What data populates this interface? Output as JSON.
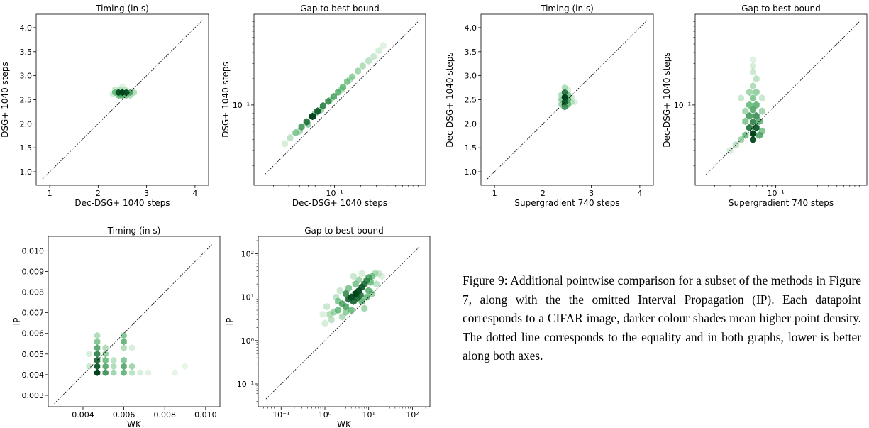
{
  "caption": "Figure 9:   Additional pointwise comparison for a subset of the methods in Figure 7, along with the the omitted Interval Propagation (IP). Each datapoint corresponds to a CIFAR image, darker colour shades mean higher point density.  The dotted line corresponds to the equality and in both graphs, lower is better along both axes.",
  "colors": {
    "hex_light": "#e5f5e0",
    "hex_mid": "#41ab5d",
    "hex_dark": "#00441b",
    "axis": "#000000",
    "diagonal": "#000000"
  },
  "chart_data": [
    {
      "type": "scatter",
      "style": "hexbin-density",
      "title": "Timing (in s)",
      "xlabel": "Dec-DSG+ 1040 steps",
      "ylabel": "DSG+ 1040 steps",
      "xscale": "linear",
      "yscale": "linear",
      "xlim": [
        0.72,
        4.28
      ],
      "ylim": [
        0.72,
        4.28
      ],
      "xticks": [
        1,
        2,
        3,
        4
      ],
      "xticklabels": [
        "1",
        "2",
        "3",
        "4"
      ],
      "yticks": [
        1.0,
        1.5,
        2.0,
        2.5,
        3.0,
        3.5,
        4.0
      ],
      "yticklabels": [
        "1.0",
        "1.5",
        "2.0",
        "2.5",
        "3.0",
        "3.5",
        "4.0"
      ],
      "diagonal": [
        0.85,
        4.15
      ],
      "grid": false,
      "points": [
        [
          2.35,
          2.65,
          0.5
        ],
        [
          2.42,
          2.65,
          0.95
        ],
        [
          2.5,
          2.65,
          1.0
        ],
        [
          2.58,
          2.65,
          0.95
        ],
        [
          2.66,
          2.65,
          0.6
        ],
        [
          2.74,
          2.65,
          0.3
        ],
        [
          2.42,
          2.59,
          0.45
        ],
        [
          2.5,
          2.59,
          0.55
        ],
        [
          2.58,
          2.59,
          0.45
        ],
        [
          2.66,
          2.59,
          0.3
        ],
        [
          2.35,
          2.71,
          0.2
        ],
        [
          2.45,
          2.71,
          0.25
        ],
        [
          2.55,
          2.71,
          0.2
        ],
        [
          2.5,
          2.77,
          0.1
        ],
        [
          2.45,
          2.59,
          0.35
        ],
        [
          2.3,
          2.62,
          0.15
        ]
      ]
    },
    {
      "type": "scatter",
      "style": "hexbin-density",
      "title": "Gap to best bound",
      "xlabel": "Dec-DSG+ 1040 steps",
      "ylabel": "DSG+ 1040 steps",
      "xscale": "log",
      "yscale": "log",
      "xlim": [
        0.012,
        1.1
      ],
      "ylim": [
        0.012,
        1.1
      ],
      "xticks": [
        0.1
      ],
      "xticklabels": [
        "10⁻¹"
      ],
      "yticks": [
        0.1
      ],
      "yticklabels": [
        "10⁻¹"
      ],
      "diagonal": [
        0.016,
        0.9
      ],
      "grid": false,
      "points": [
        [
          0.027,
          0.036,
          0.15
        ],
        [
          0.031,
          0.042,
          0.25
        ],
        [
          0.036,
          0.048,
          0.45
        ],
        [
          0.042,
          0.056,
          0.65
        ],
        [
          0.048,
          0.064,
          0.8
        ],
        [
          0.056,
          0.074,
          1.0
        ],
        [
          0.064,
          0.085,
          0.9
        ],
        [
          0.074,
          0.098,
          0.75
        ],
        [
          0.085,
          0.11,
          0.7
        ],
        [
          0.098,
          0.125,
          0.6
        ],
        [
          0.11,
          0.14,
          0.55
        ],
        [
          0.125,
          0.16,
          0.5
        ],
        [
          0.14,
          0.185,
          0.45
        ],
        [
          0.16,
          0.21,
          0.4
        ],
        [
          0.185,
          0.245,
          0.35
        ],
        [
          0.21,
          0.28,
          0.3
        ],
        [
          0.245,
          0.32,
          0.25
        ],
        [
          0.28,
          0.36,
          0.2
        ],
        [
          0.32,
          0.42,
          0.15
        ],
        [
          0.36,
          0.48,
          0.1
        ],
        [
          0.04,
          0.05,
          0.3
        ],
        [
          0.05,
          0.06,
          0.4
        ],
        [
          0.06,
          0.08,
          0.35
        ],
        [
          0.07,
          0.088,
          0.4
        ],
        [
          0.09,
          0.115,
          0.35
        ],
        [
          0.12,
          0.15,
          0.3
        ],
        [
          0.15,
          0.195,
          0.25
        ]
      ]
    },
    {
      "type": "scatter",
      "style": "hexbin-density",
      "title": "Timing (in s)",
      "xlabel": "Supergradient 740 steps",
      "ylabel": "Dec-DSG+ 1040 steps",
      "xscale": "linear",
      "yscale": "linear",
      "xlim": [
        0.72,
        4.28
      ],
      "ylim": [
        0.72,
        4.28
      ],
      "xticks": [
        1,
        2,
        3,
        4
      ],
      "xticklabels": [
        "1",
        "2",
        "3",
        "4"
      ],
      "yticks": [
        1.0,
        1.5,
        2.0,
        2.5,
        3.0,
        3.5,
        4.0
      ],
      "yticklabels": [
        "1.0",
        "1.5",
        "2.0",
        "2.5",
        "3.0",
        "3.5",
        "4.0"
      ],
      "diagonal": [
        0.85,
        4.15
      ],
      "grid": false,
      "points": [
        [
          2.45,
          2.35,
          0.7
        ],
        [
          2.45,
          2.45,
          0.9
        ],
        [
          2.45,
          2.55,
          1.0
        ],
        [
          2.45,
          2.65,
          0.8
        ],
        [
          2.52,
          2.4,
          0.5
        ],
        [
          2.52,
          2.5,
          0.55
        ],
        [
          2.52,
          2.6,
          0.45
        ],
        [
          2.38,
          2.4,
          0.35
        ],
        [
          2.38,
          2.5,
          0.4
        ],
        [
          2.38,
          2.6,
          0.3
        ],
        [
          2.59,
          2.45,
          0.25
        ],
        [
          2.59,
          2.55,
          0.2
        ],
        [
          2.45,
          2.75,
          0.3
        ],
        [
          2.52,
          2.7,
          0.15
        ],
        [
          2.66,
          2.45,
          0.12
        ]
      ]
    },
    {
      "type": "scatter",
      "style": "hexbin-density",
      "title": "Gap to best bound",
      "xlabel": "Supergradient 740 steps",
      "ylabel": "Dec-DSG+ 1040 steps",
      "xscale": "log",
      "yscale": "log",
      "xlim": [
        0.012,
        1.1
      ],
      "ylim": [
        0.012,
        1.1
      ],
      "xticks": [
        0.1
      ],
      "xticklabels": [
        "10⁻¹"
      ],
      "yticks": [
        0.1
      ],
      "yticklabels": [
        "10⁻¹"
      ],
      "diagonal": [
        0.016,
        0.9
      ],
      "grid": false,
      "points": [
        [
          0.055,
          0.04,
          0.95
        ],
        [
          0.055,
          0.047,
          1.0
        ],
        [
          0.06,
          0.055,
          0.9
        ],
        [
          0.05,
          0.055,
          0.8
        ],
        [
          0.055,
          0.064,
          0.75
        ],
        [
          0.06,
          0.075,
          0.7
        ],
        [
          0.05,
          0.075,
          0.65
        ],
        [
          0.055,
          0.088,
          0.6
        ],
        [
          0.06,
          0.1,
          0.55
        ],
        [
          0.05,
          0.1,
          0.5
        ],
        [
          0.055,
          0.12,
          0.45
        ],
        [
          0.06,
          0.14,
          0.4
        ],
        [
          0.05,
          0.14,
          0.35
        ],
        [
          0.055,
          0.165,
          0.3
        ],
        [
          0.06,
          0.2,
          0.25
        ],
        [
          0.055,
          0.24,
          0.2
        ],
        [
          0.055,
          0.28,
          0.15
        ],
        [
          0.055,
          0.33,
          0.1
        ],
        [
          0.045,
          0.045,
          0.5
        ],
        [
          0.04,
          0.04,
          0.35
        ],
        [
          0.035,
          0.035,
          0.25
        ],
        [
          0.03,
          0.03,
          0.15
        ],
        [
          0.065,
          0.045,
          0.6
        ],
        [
          0.07,
          0.05,
          0.45
        ],
        [
          0.045,
          0.065,
          0.45
        ],
        [
          0.065,
          0.065,
          0.55
        ],
        [
          0.07,
          0.085,
          0.35
        ],
        [
          0.045,
          0.085,
          0.35
        ],
        [
          0.04,
          0.12,
          0.2
        ],
        [
          0.07,
          0.12,
          0.2
        ]
      ]
    },
    {
      "type": "scatter",
      "style": "hexbin-density",
      "title": "Timing (in s)",
      "xlabel": "WK",
      "ylabel": "IP",
      "xscale": "linear",
      "yscale": "linear",
      "xlim": [
        0.0023,
        0.0107
      ],
      "ylim": [
        0.00245,
        0.0107
      ],
      "xticks": [
        0.004,
        0.006,
        0.008,
        0.01
      ],
      "xticklabels": [
        "0.004",
        "0.006",
        "0.008",
        "0.010"
      ],
      "yticks": [
        0.003,
        0.004,
        0.005,
        0.006,
        0.007,
        0.008,
        0.009,
        0.01
      ],
      "yticklabels": [
        "0.003",
        "0.004",
        "0.005",
        "0.006",
        "0.007",
        "0.008",
        "0.009",
        "0.010"
      ],
      "diagonal": [
        0.0026,
        0.0103
      ],
      "grid": false,
      "points": [
        [
          0.0047,
          0.0041,
          1.0
        ],
        [
          0.0047,
          0.0044,
          0.9
        ],
        [
          0.0047,
          0.0047,
          0.85
        ],
        [
          0.0047,
          0.005,
          0.75
        ],
        [
          0.0047,
          0.0053,
          0.6
        ],
        [
          0.0047,
          0.0056,
          0.45
        ],
        [
          0.0047,
          0.0059,
          0.3
        ],
        [
          0.0051,
          0.0041,
          0.7
        ],
        [
          0.0051,
          0.0044,
          0.6
        ],
        [
          0.0051,
          0.0047,
          0.5
        ],
        [
          0.0051,
          0.005,
          0.4
        ],
        [
          0.0051,
          0.0053,
          0.3
        ],
        [
          0.0055,
          0.0041,
          0.35
        ],
        [
          0.0055,
          0.0044,
          0.3
        ],
        [
          0.0055,
          0.0047,
          0.25
        ],
        [
          0.006,
          0.0041,
          0.55
        ],
        [
          0.006,
          0.0044,
          0.6
        ],
        [
          0.006,
          0.0047,
          0.45
        ],
        [
          0.006,
          0.0053,
          0.3
        ],
        [
          0.006,
          0.0056,
          0.55
        ],
        [
          0.006,
          0.0059,
          0.45
        ],
        [
          0.0064,
          0.0044,
          0.35
        ],
        [
          0.0064,
          0.0041,
          0.25
        ],
        [
          0.0064,
          0.0053,
          0.15
        ],
        [
          0.0043,
          0.0044,
          0.2
        ],
        [
          0.0043,
          0.005,
          0.15
        ],
        [
          0.0068,
          0.0041,
          0.15
        ],
        [
          0.0072,
          0.0041,
          0.1
        ],
        [
          0.0085,
          0.0041,
          0.08
        ],
        [
          0.009,
          0.0044,
          0.06
        ]
      ]
    },
    {
      "type": "scatter",
      "style": "hexbin-density",
      "title": "Gap to best bound",
      "xlabel": "WK",
      "ylabel": "IP",
      "xscale": "log",
      "yscale": "log",
      "xlim": [
        0.03,
        250
      ],
      "ylim": [
        0.03,
        250
      ],
      "xticks": [
        0.1,
        1,
        10,
        100
      ],
      "xticklabels": [
        "10⁻¹",
        "10⁰",
        "10¹",
        "10²"
      ],
      "yticks": [
        0.1,
        1,
        10,
        100
      ],
      "yticklabels": [
        "10⁻¹",
        "10⁰",
        "10¹",
        "10²"
      ],
      "diagonal": [
        0.045,
        150
      ],
      "grid": false,
      "points": [
        [
          5,
          12,
          1.0
        ],
        [
          6,
          14,
          0.95
        ],
        [
          4,
          10,
          0.95
        ],
        [
          7,
          17,
          0.9
        ],
        [
          3.5,
          9,
          0.85
        ],
        [
          8,
          20,
          0.8
        ],
        [
          4.5,
          8,
          0.85
        ],
        [
          5.5,
          9.5,
          0.85
        ],
        [
          3,
          12,
          0.7
        ],
        [
          6.5,
          11,
          0.8
        ],
        [
          9,
          24,
          0.7
        ],
        [
          2.5,
          7,
          0.6
        ],
        [
          10,
          28,
          0.6
        ],
        [
          3,
          6,
          0.6
        ],
        [
          2,
          5,
          0.5
        ],
        [
          12,
          30,
          0.45
        ],
        [
          2,
          8,
          0.45
        ],
        [
          1.6,
          4.5,
          0.35
        ],
        [
          1.3,
          4,
          0.3
        ],
        [
          4,
          5,
          0.5
        ],
        [
          7,
          8,
          0.55
        ],
        [
          10,
          14,
          0.55
        ],
        [
          14,
          35,
          0.3
        ],
        [
          1.1,
          6,
          0.2
        ],
        [
          1.4,
          3,
          0.25
        ],
        [
          2.5,
          3.5,
          0.3
        ],
        [
          8,
          5.5,
          0.35
        ],
        [
          12,
          12,
          0.4
        ],
        [
          3.5,
          16,
          0.45
        ],
        [
          5,
          20,
          0.45
        ],
        [
          6,
          25,
          0.35
        ],
        [
          15,
          20,
          0.25
        ],
        [
          17,
          35,
          0.2
        ],
        [
          1,
          2.5,
          0.15
        ],
        [
          0.9,
          4,
          0.12
        ],
        [
          20,
          30,
          0.12
        ],
        [
          3,
          4.5,
          0.4
        ],
        [
          9,
          10,
          0.5
        ],
        [
          11,
          22,
          0.5
        ],
        [
          1.8,
          10,
          0.25
        ],
        [
          2.2,
          14,
          0.2
        ],
        [
          4.5,
          30,
          0.2
        ],
        [
          7,
          35,
          0.15
        ]
      ]
    }
  ]
}
